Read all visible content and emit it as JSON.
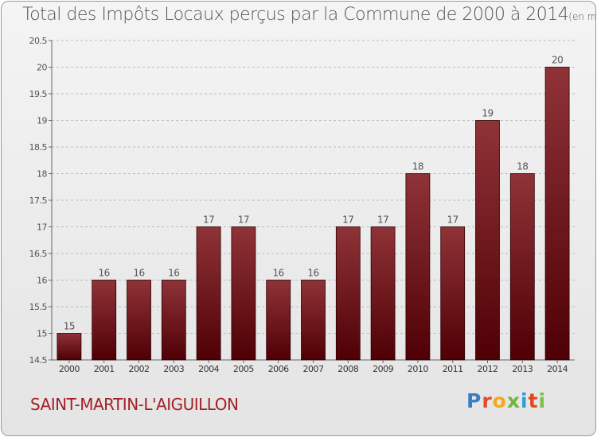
{
  "title": "Total des Impôts Locaux perçus par la Commune de 2000 à 2014",
  "unit_note": "(en milliers d'€)",
  "commune": "SAINT-MARTIN-L'AIGUILLON",
  "logo": {
    "text": "Proxiti"
  },
  "colors": {
    "bar_top": "#8f3338",
    "bar_bottom": "#4f0005",
    "commune_text": "#a32027",
    "grid": "#bbbbbb"
  },
  "chart_data": {
    "type": "bar",
    "categories": [
      "2000",
      "2001",
      "2002",
      "2003",
      "2004",
      "2005",
      "2006",
      "2007",
      "2008",
      "2009",
      "2010",
      "2011",
      "2012",
      "2013",
      "2014"
    ],
    "values": [
      15,
      16,
      16,
      16,
      17,
      17,
      16,
      16,
      17,
      17,
      18,
      17,
      19,
      18,
      20
    ],
    "data_labels": [
      "15",
      "16",
      "16",
      "16",
      "17",
      "17",
      "16",
      "16",
      "17",
      "17",
      "18",
      "17",
      "19",
      "18",
      "20"
    ],
    "ylim": [
      14.5,
      20.5
    ],
    "yticks": [
      14.5,
      15,
      15.5,
      16,
      16.5,
      17,
      17.5,
      18,
      18.5,
      19,
      19.5,
      20,
      20.5
    ],
    "ytick_labels": [
      "14.5",
      "15",
      "15.5",
      "16",
      "16.5",
      "17",
      "17.5",
      "18",
      "18.5",
      "19",
      "19.5",
      "20",
      "20.5"
    ],
    "grid": "horizontal dashed"
  }
}
